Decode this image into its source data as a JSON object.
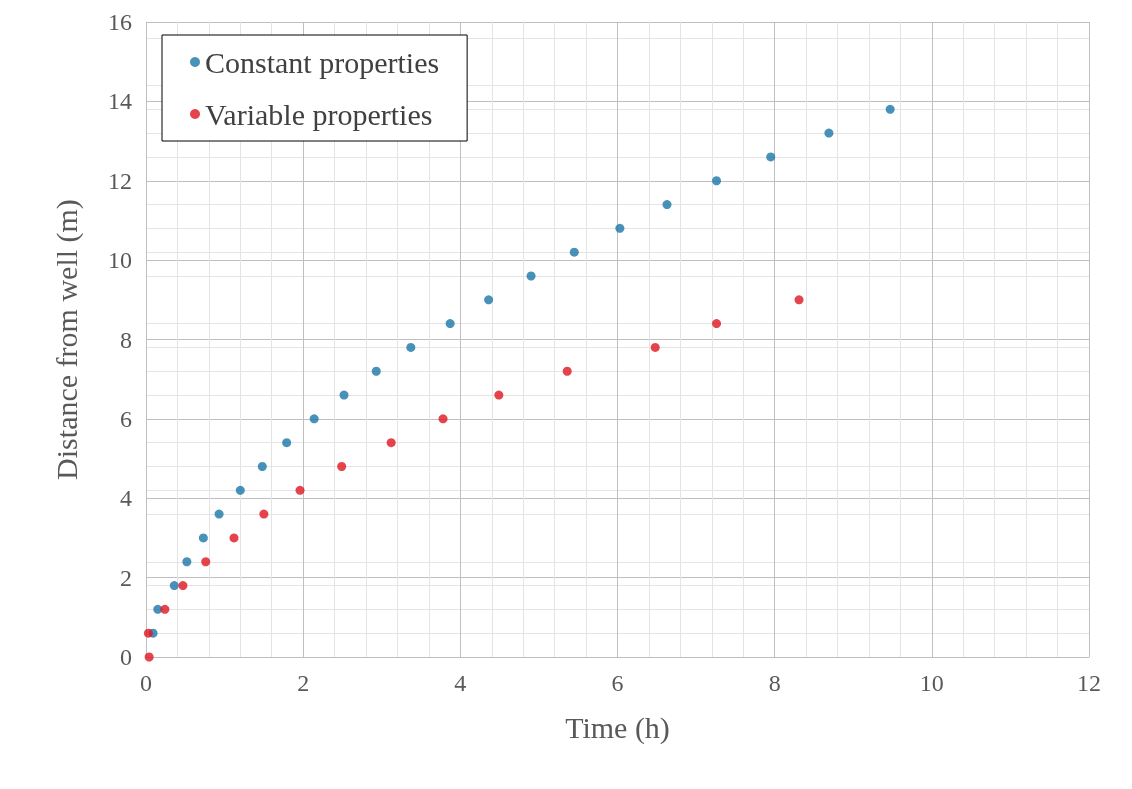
{
  "chart_data": {
    "type": "scatter",
    "xlabel": "Time (h)",
    "ylabel": "Distance from well (m)",
    "series": [
      {
        "name": "Constant properties",
        "color": "#1a75a6",
        "x": [
          0.09,
          0.15,
          0.36,
          0.52,
          0.73,
          0.93,
          1.2,
          1.48,
          1.79,
          2.14,
          2.52,
          2.93,
          3.37,
          3.87,
          4.36,
          4.9,
          5.45,
          6.03,
          6.63,
          7.26,
          7.95,
          8.69,
          9.47
        ],
        "values": [
          0.6,
          1.2,
          1.8,
          2.4,
          3.0,
          3.6,
          4.2,
          4.8,
          5.4,
          6.0,
          6.6,
          7.2,
          7.8,
          8.4,
          9.0,
          9.6,
          10.2,
          10.8,
          11.4,
          12.0,
          12.6,
          13.2,
          13.8
        ]
      },
      {
        "name": "Variable properties",
        "color": "#e0151f",
        "x": [
          0.04,
          0.03,
          0.24,
          0.47,
          0.76,
          1.12,
          1.5,
          1.96,
          2.49,
          3.12,
          3.78,
          4.49,
          5.36,
          6.48,
          7.26,
          8.31
        ],
        "values": [
          0.0,
          0.6,
          1.2,
          1.8,
          2.4,
          3.0,
          3.6,
          4.2,
          4.8,
          5.4,
          6.0,
          6.6,
          7.2,
          7.8,
          8.4,
          9.0
        ]
      }
    ],
    "xlim": [
      0,
      12
    ],
    "xticks": [
      0,
      2,
      4,
      6,
      8,
      10,
      12
    ],
    "ylim": [
      0,
      16
    ],
    "yticks": [
      0,
      2,
      4,
      6,
      8,
      10,
      12,
      14,
      16
    ],
    "grid": true,
    "legend": "top left",
    "marker": "circle"
  }
}
